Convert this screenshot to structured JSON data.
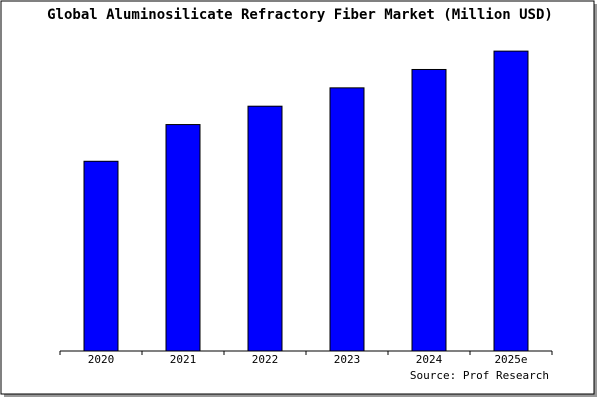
{
  "chart_data": {
    "type": "bar",
    "title": "Global Aluminosilicate Refractory Fiber Market (Million USD)",
    "categories": [
      "2020",
      "2021",
      "2022",
      "2023",
      "2024",
      "2025e"
    ],
    "values": [
      62,
      74,
      80,
      86,
      92,
      98
    ],
    "color": "#0000ff",
    "ylim": [
      0,
      100
    ],
    "source": "Source: Prof Research"
  }
}
